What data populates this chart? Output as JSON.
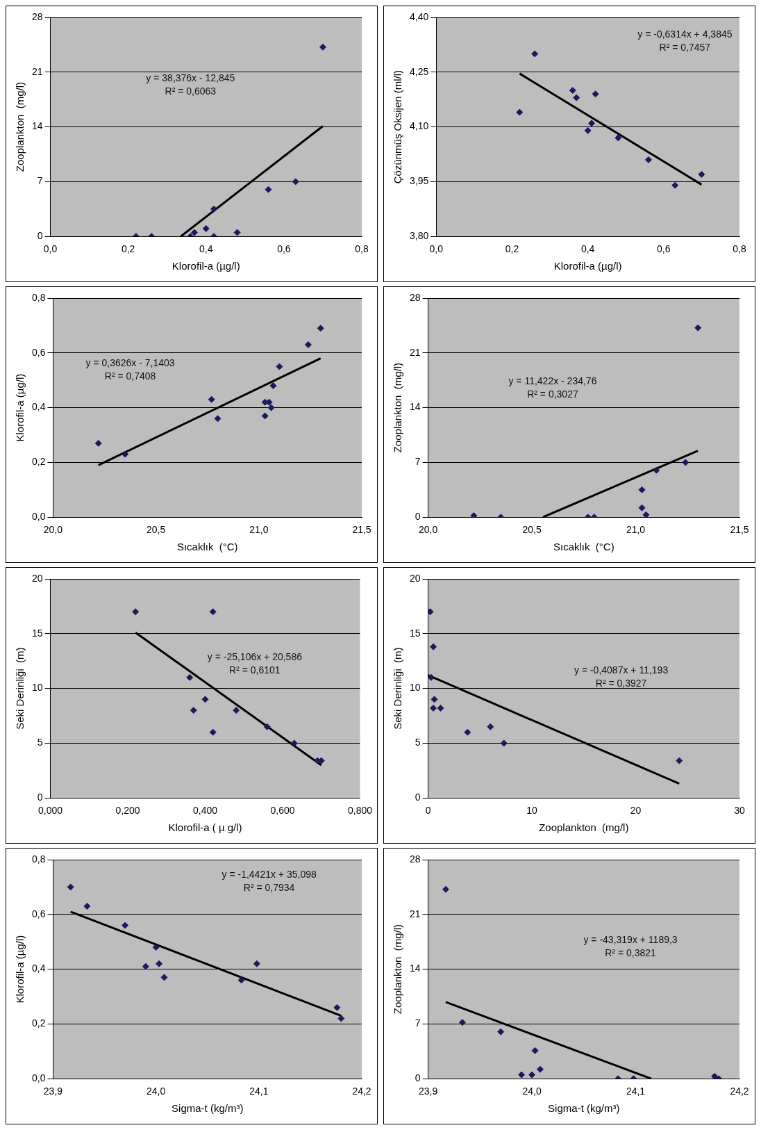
{
  "chart_data": [
    {
      "type": "scatter",
      "xlabel": "Klorofil-a (µg/l)",
      "ylabel": "Zooplankton  (mg/l)",
      "xlim": [
        0,
        0.8
      ],
      "xticks": [
        {
          "value": 0,
          "label": "0,0"
        },
        {
          "value": 0.2,
          "label": "0,2"
        },
        {
          "value": 0.4,
          "label": "0,4"
        },
        {
          "value": 0.6,
          "label": "0,6"
        },
        {
          "value": 0.8,
          "label": "0,8"
        }
      ],
      "ylim": [
        0,
        28
      ],
      "yticks": [
        0,
        7,
        14,
        21,
        28
      ],
      "grid": "y",
      "annotations": [
        "y = 38,376x - 12,845",
        "R² = 0,6063"
      ],
      "series": [
        {
          "marker": "diamond",
          "color": "#1a1a5c",
          "x": [
            0.22,
            0.26,
            0.36,
            0.37,
            0.4,
            0.42,
            0.42,
            0.48,
            0.56,
            0.63,
            0.7
          ],
          "values": [
            0,
            0,
            0,
            0.5,
            1,
            3.5,
            0,
            0.5,
            6,
            7,
            24.2
          ]
        },
        {
          "type": "line",
          "color": "#000000",
          "x": [
            0.335,
            0.7
          ],
          "values": [
            0,
            14.1
          ]
        }
      ]
    },
    {
      "type": "scatter",
      "xlabel": "Klorofil-a (µg/l)",
      "ylabel": "Çözünmüş Oksijen (ml/l)",
      "xlim": [
        0,
        0.8
      ],
      "xticks": [
        {
          "value": 0,
          "label": "0,0"
        },
        {
          "value": 0.2,
          "label": "0,2"
        },
        {
          "value": 0.4,
          "label": "0,4"
        },
        {
          "value": 0.6,
          "label": "0,6"
        },
        {
          "value": 0.8,
          "label": "0,8"
        }
      ],
      "ylim": [
        3.8,
        4.4
      ],
      "yticks": [
        {
          "value": 3.8,
          "label": "3,80"
        },
        {
          "value": 3.95,
          "label": "3,95"
        },
        {
          "value": 4.1,
          "label": "4,10"
        },
        {
          "value": 4.25,
          "label": "4,25"
        },
        {
          "value": 4.4,
          "label": "4,40"
        }
      ],
      "grid": "y",
      "annotations": [
        "y = -0,6314x + 4,3845",
        "R² = 0,7457"
      ],
      "series": [
        {
          "marker": "diamond",
          "color": "#1a1a5c",
          "x": [
            0.22,
            0.26,
            0.36,
            0.37,
            0.4,
            0.41,
            0.42,
            0.48,
            0.56,
            0.63,
            0.7
          ],
          "values": [
            4.14,
            4.3,
            4.2,
            4.18,
            4.09,
            4.11,
            4.19,
            4.07,
            4.01,
            3.94,
            3.97
          ]
        },
        {
          "type": "line",
          "color": "#000000",
          "x": [
            0.22,
            0.7
          ],
          "values": [
            4.246,
            3.942
          ]
        }
      ]
    },
    {
      "type": "scatter",
      "xlabel": "Sıcaklık  (°C)",
      "ylabel": "Klorofil-a (µg/l)",
      "xlim": [
        20,
        21.5
      ],
      "xticks": [
        {
          "value": 20,
          "label": "20,0"
        },
        {
          "value": 20.5,
          "label": "20,5"
        },
        {
          "value": 21,
          "label": "21,0"
        },
        {
          "value": 21.5,
          "label": "21,5"
        }
      ],
      "ylim": [
        0,
        0.8
      ],
      "yticks": [
        {
          "value": 0,
          "label": "0,0"
        },
        {
          "value": 0.2,
          "label": "0,2"
        },
        {
          "value": 0.4,
          "label": "0,4"
        },
        {
          "value": 0.6,
          "label": "0,6"
        },
        {
          "value": 0.8,
          "label": "0,8"
        }
      ],
      "grid": "y",
      "annotations": [
        "y = 0,3626x - 7,1403",
        "R² = 0,7408"
      ],
      "series": [
        {
          "marker": "diamond",
          "color": "#1a1a5c",
          "x": [
            20.22,
            20.35,
            20.77,
            20.8,
            21.03,
            21.03,
            21.05,
            21.06,
            21.07,
            21.1,
            21.24,
            21.3
          ],
          "values": [
            0.27,
            0.23,
            0.43,
            0.36,
            0.37,
            0.42,
            0.42,
            0.4,
            0.48,
            0.55,
            0.63,
            0.69
          ]
        },
        {
          "type": "line",
          "color": "#000000",
          "x": [
            20.22,
            21.3
          ],
          "values": [
            0.19,
            0.58
          ]
        }
      ]
    },
    {
      "type": "scatter",
      "xlabel": "Sıcaklık  (°C)",
      "ylabel": "Zooplankton  (mg/l)",
      "xlim": [
        20,
        21.5
      ],
      "xticks": [
        {
          "value": 20,
          "label": "20,0"
        },
        {
          "value": 20.5,
          "label": "20,5"
        },
        {
          "value": 21,
          "label": "21,0"
        },
        {
          "value": 21.5,
          "label": "21,5"
        }
      ],
      "ylim": [
        0,
        28
      ],
      "yticks": [
        0,
        7,
        14,
        21,
        28
      ],
      "grid": "y",
      "annotations": [
        "y = 11,422x - 234,76",
        "R² = 0,3027"
      ],
      "series": [
        {
          "marker": "diamond",
          "color": "#1a1a5c",
          "x": [
            20.22,
            20.35,
            20.77,
            20.8,
            21.03,
            21.03,
            21.05,
            21.1,
            21.24,
            21.3
          ],
          "values": [
            0.2,
            0,
            0,
            0,
            3.5,
            1.2,
            0.3,
            6,
            7,
            24.2
          ]
        },
        {
          "type": "line",
          "color": "#000000",
          "x": [
            20.553,
            21.3
          ],
          "values": [
            0,
            8.5
          ]
        }
      ]
    },
    {
      "type": "scatter",
      "xlabel": "Klorofil-a ( µ g/l)",
      "ylabel": "Seki Derinliği  (m)",
      "xlim": [
        0,
        0.8
      ],
      "xticks": [
        {
          "value": 0,
          "label": "0,000"
        },
        {
          "value": 0.2,
          "label": "0,200"
        },
        {
          "value": 0.4,
          "label": "0,400"
        },
        {
          "value": 0.6,
          "label": "0,600"
        },
        {
          "value": 0.8,
          "label": "0,800"
        }
      ],
      "ylim": [
        0,
        20
      ],
      "yticks": [
        0,
        5,
        10,
        15,
        20
      ],
      "grid": "y",
      "annotations": [
        "y = -25,106x + 20,586",
        "R² = 0,6101"
      ],
      "series": [
        {
          "marker": "diamond",
          "color": "#1a1a5c",
          "x": [
            0.22,
            0.36,
            0.37,
            0.4,
            0.42,
            0.42,
            0.48,
            0.56,
            0.63,
            0.69,
            0.7
          ],
          "values": [
            17,
            11,
            8,
            9,
            17,
            6,
            8,
            6.5,
            5,
            3.4,
            3.4
          ]
        },
        {
          "type": "line",
          "color": "#000000",
          "x": [
            0.22,
            0.7
          ],
          "values": [
            15.1,
            3.0
          ]
        }
      ]
    },
    {
      "type": "scatter",
      "xlabel": "Zooplankton  (mg/l)",
      "ylabel": "Seki Derinliği  (m)",
      "xlim": [
        0,
        30
      ],
      "xticks": [
        0,
        10,
        20,
        30
      ],
      "ylim": [
        0,
        20
      ],
      "yticks": [
        0,
        5,
        10,
        15,
        20
      ],
      "grid": "y",
      "annotations": [
        "y = -0,4087x + 11,193",
        "R² = 0,3927"
      ],
      "series": [
        {
          "marker": "diamond",
          "color": "#1a1a5c",
          "x": [
            0.2,
            0.5,
            0.3,
            0.6,
            0.5,
            1.2,
            3.8,
            6,
            7.3,
            24.2
          ],
          "values": [
            17,
            13.8,
            11,
            9,
            8.2,
            8.2,
            6,
            6.5,
            5,
            3.4
          ]
        },
        {
          "type": "line",
          "color": "#000000",
          "x": [
            0,
            24.2
          ],
          "values": [
            11.2,
            1.3
          ]
        }
      ]
    },
    {
      "type": "scatter",
      "xlabel": "Sigma-t (kg/m³)",
      "ylabel": "Klorofil-a (µg/l)",
      "xlim": [
        23.9,
        24.2
      ],
      "xticks": [
        {
          "value": 23.9,
          "label": "23,9"
        },
        {
          "value": 24,
          "label": "24,0"
        },
        {
          "value": 24.1,
          "label": "24,1"
        },
        {
          "value": 24.2,
          "label": "24,2"
        }
      ],
      "ylim": [
        0,
        0.8
      ],
      "yticks": [
        {
          "value": 0,
          "label": "0,0"
        },
        {
          "value": 0.2,
          "label": "0,2"
        },
        {
          "value": 0.4,
          "label": "0,4"
        },
        {
          "value": 0.6,
          "label": "0,6"
        },
        {
          "value": 0.8,
          "label": "0,8"
        }
      ],
      "grid": "y",
      "annotations": [
        "y = -1,4421x + 35,098",
        "R² = 0,7934"
      ],
      "series": [
        {
          "marker": "diamond",
          "color": "#1a1a5c",
          "x": [
            23.917,
            23.933,
            23.97,
            23.99,
            24.0,
            24.003,
            24.008,
            24.083,
            24.098,
            24.176,
            24.18
          ],
          "values": [
            0.7,
            0.63,
            0.56,
            0.41,
            0.48,
            0.42,
            0.37,
            0.36,
            0.42,
            0.26,
            0.22
          ]
        },
        {
          "type": "line",
          "color": "#000000",
          "x": [
            23.917,
            24.18
          ],
          "values": [
            0.61,
            0.23
          ]
        }
      ]
    },
    {
      "type": "scatter",
      "xlabel": "Sigma-t (kg/m³)",
      "ylabel": "Zooplankton  (mg/l)",
      "xlim": [
        23.9,
        24.2
      ],
      "xticks": [
        {
          "value": 23.9,
          "label": "23,9"
        },
        {
          "value": 24,
          "label": "24,0"
        },
        {
          "value": 24.1,
          "label": "24,1"
        },
        {
          "value": 24.2,
          "label": "24,2"
        }
      ],
      "ylim": [
        0,
        28
      ],
      "yticks": [
        0,
        7,
        14,
        21,
        28
      ],
      "grid": "y",
      "annotations": [
        "y = -43,319x + 1189,3",
        "R² = 0,3821"
      ],
      "series": [
        {
          "marker": "diamond",
          "color": "#1a1a5c",
          "x": [
            23.917,
            23.933,
            23.97,
            23.99,
            24.0,
            24.003,
            24.008,
            24.083,
            24.098,
            24.176,
            24.18
          ],
          "values": [
            24.2,
            7.2,
            6,
            0.5,
            0.5,
            3.6,
            1.2,
            0,
            0,
            0.3,
            0
          ]
        },
        {
          "type": "line",
          "color": "#000000",
          "x": [
            23.917,
            24.115
          ],
          "values": [
            9.8,
            0
          ]
        }
      ]
    }
  ]
}
